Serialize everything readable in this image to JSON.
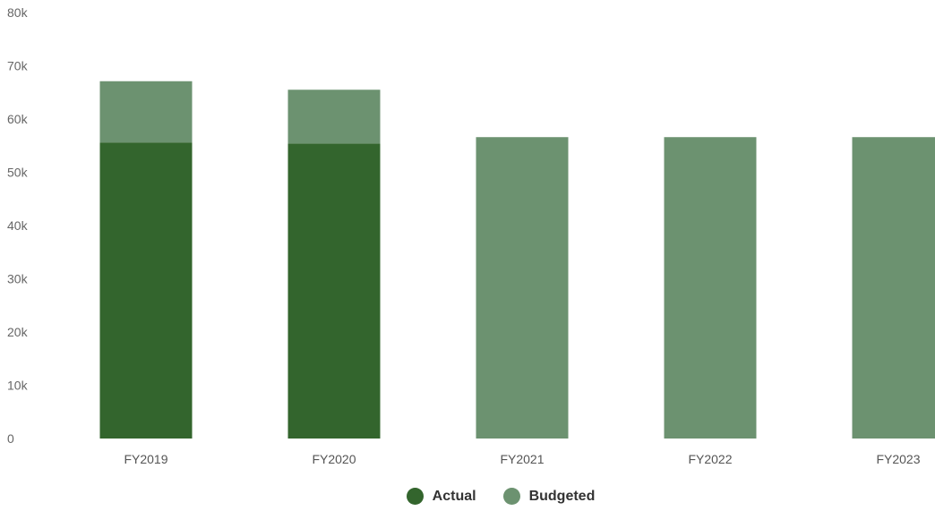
{
  "chart_data": {
    "type": "bar",
    "stacked": true,
    "categories": [
      "FY2019",
      "FY2020",
      "FY2021",
      "FY2022",
      "FY2023"
    ],
    "series": [
      {
        "name": "Actual",
        "color": "#33652d",
        "values": [
          55600,
          55400,
          0,
          0,
          0
        ]
      },
      {
        "name": "Budgeted",
        "color": "#6c9270",
        "values": [
          11500,
          10100,
          56600,
          56600,
          56600
        ]
      }
    ],
    "ylim": [
      0,
      80000
    ],
    "yticks": [
      0,
      10000,
      20000,
      30000,
      40000,
      50000,
      60000,
      70000,
      80000
    ],
    "ytick_labels": [
      "0",
      "10k",
      "20k",
      "30k",
      "40k",
      "50k",
      "60k",
      "70k",
      "80k"
    ],
    "grid": false,
    "legend_position": "bottom-center"
  },
  "legend": {
    "items": [
      {
        "label": "Actual",
        "color": "#33652d"
      },
      {
        "label": "Budgeted",
        "color": "#6c9270"
      }
    ]
  }
}
